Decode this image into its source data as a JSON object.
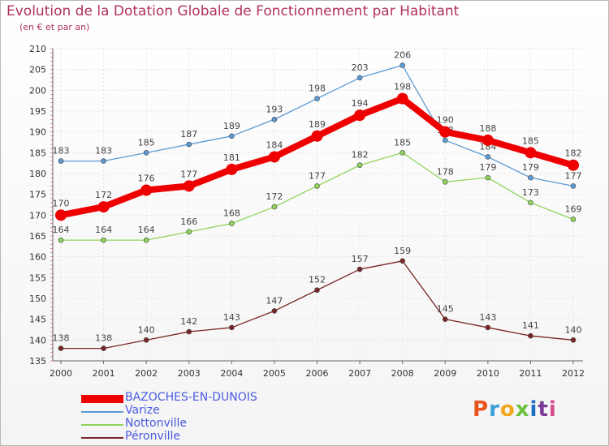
{
  "title": "Evolution de la Dotation Globale de Fonctionnement par Habitant",
  "subtitle": "(en € et par an)",
  "logo": {
    "text": "Proxiti",
    "colors": [
      "#e8541d",
      "#3aa0d8",
      "#f2a81c",
      "#6cbf3f",
      "#1f6fc2",
      "#7a3c96",
      "#d64a8c"
    ]
  },
  "chart_data": {
    "type": "line",
    "x": [
      "2000",
      "2001",
      "2002",
      "2003",
      "2004",
      "2005",
      "2006",
      "2007",
      "2008",
      "2009",
      "2010",
      "2011",
      "2012"
    ],
    "ylim": [
      135,
      210
    ],
    "yticks": [
      135,
      140,
      145,
      150,
      155,
      160,
      165,
      170,
      175,
      180,
      185,
      190,
      195,
      200,
      205,
      210
    ],
    "grid": true,
    "legend_position": "bottom-left",
    "series": [
      {
        "name": "Varize",
        "color": "#5b9bd5",
        "values": [
          183,
          183,
          185,
          187,
          189,
          193,
          198,
          203,
          206,
          188,
          184,
          179,
          177
        ]
      },
      {
        "name": "Nottonville",
        "color": "#8fd45a",
        "values": [
          164,
          164,
          164,
          166,
          168,
          172,
          177,
          182,
          185,
          178,
          179,
          173,
          169
        ]
      },
      {
        "name": "Péronville",
        "color": "#7a2626",
        "values": [
          138,
          138,
          140,
          142,
          143,
          147,
          152,
          157,
          159,
          145,
          143,
          141,
          140
        ]
      },
      {
        "name": "BAZOCHES-EN-DUNOIS",
        "color": "#ee0000",
        "values": [
          170,
          172,
          176,
          177,
          181,
          184,
          189,
          194,
          198,
          190,
          188,
          185,
          182
        ]
      }
    ]
  },
  "legend": [
    {
      "label": "BAZOCHES-EN-DUNOIS",
      "color": "#ee0000"
    },
    {
      "label": "Varize",
      "color": "#5b9bd5"
    },
    {
      "label": "Nottonville",
      "color": "#8fd45a"
    },
    {
      "label": "Péronville",
      "color": "#7a2626"
    }
  ]
}
